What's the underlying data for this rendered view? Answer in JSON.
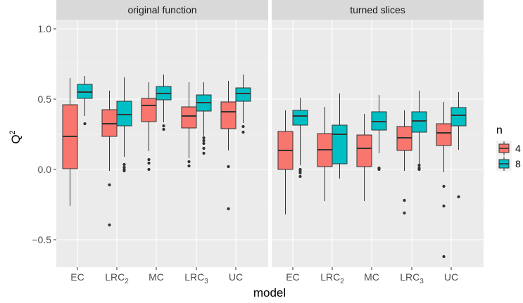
{
  "chart_data": {
    "type": "boxplot",
    "facets": [
      "original function",
      "turned slices"
    ],
    "categories": [
      "EC",
      "LRC2",
      "MC",
      "LRC3",
      "UC"
    ],
    "category_labels": [
      {
        "base": "EC",
        "sub": ""
      },
      {
        "base": "LRC",
        "sub": "2"
      },
      {
        "base": "MC",
        "sub": ""
      },
      {
        "base": "LRC",
        "sub": "3"
      },
      {
        "base": "UC",
        "sub": ""
      }
    ],
    "xlabel": "model",
    "ylabel": {
      "base": "Q",
      "sup": "2"
    },
    "ylim": [
      -0.7,
      1.1
    ],
    "yticks": [
      -0.5,
      0.0,
      0.5,
      1.0
    ],
    "ytick_labels": [
      "−0.5",
      "0.0",
      "0.5",
      "1.0"
    ],
    "grid": true,
    "legend": {
      "title": "n",
      "position": "right",
      "entries": [
        "4",
        "8"
      ]
    },
    "series": [
      {
        "name": "4",
        "color": "#F8766D",
        "boxes": [
          [
            {
              "low": -0.26,
              "q1": 0.005,
              "median": 0.235,
              "q3": 0.46,
              "high": 0.65,
              "outliers": []
            },
            {
              "low": -0.01,
              "q1": 0.235,
              "median": 0.325,
              "q3": 0.425,
              "high": 0.56,
              "outliers": [
                -0.11,
                -0.395
              ]
            },
            {
              "low": 0.13,
              "q1": 0.34,
              "median": 0.455,
              "q3": 0.505,
              "high": 0.62,
              "outliers": [
                0.07,
                0.045,
                0.0
              ]
            },
            {
              "low": 0.08,
              "q1": 0.295,
              "median": 0.38,
              "q3": 0.445,
              "high": 0.62,
              "outliers": [
                0.055,
                0.025
              ]
            },
            {
              "low": 0.135,
              "q1": 0.29,
              "median": 0.41,
              "q3": 0.48,
              "high": 0.63,
              "outliers": [
                0.02,
                -0.28
              ]
            }
          ],
          [
            {
              "low": -0.32,
              "q1": 0.0,
              "median": 0.135,
              "q3": 0.27,
              "high": 0.42,
              "outliers": []
            },
            {
              "low": -0.225,
              "q1": 0.02,
              "median": 0.14,
              "q3": 0.255,
              "high": 0.445,
              "outliers": []
            },
            {
              "low": -0.225,
              "q1": 0.02,
              "median": 0.15,
              "q3": 0.245,
              "high": 0.395,
              "outliers": []
            },
            {
              "low": -0.01,
              "q1": 0.135,
              "median": 0.225,
              "q3": 0.305,
              "high": 0.42,
              "outliers": [
                -0.22,
                -0.31
              ]
            },
            {
              "low": -0.02,
              "q1": 0.17,
              "median": 0.26,
              "q3": 0.325,
              "high": 0.48,
              "outliers": [
                -0.12,
                -0.26,
                -0.62
              ]
            }
          ]
        ]
      },
      {
        "name": "8",
        "color": "#00BFC4",
        "boxes": [
          [
            {
              "low": 0.38,
              "q1": 0.505,
              "median": 0.55,
              "q3": 0.605,
              "high": 0.665,
              "outliers": [
                0.325
              ]
            },
            {
              "low": 0.09,
              "q1": 0.31,
              "median": 0.39,
              "q3": 0.485,
              "high": 0.655,
              "outliers": [
                0.035,
                0.015,
                0.0,
                -0.01
              ]
            },
            {
              "low": 0.335,
              "q1": 0.495,
              "median": 0.54,
              "q3": 0.59,
              "high": 0.675,
              "outliers": [
                0.31,
                0.285
              ]
            },
            {
              "low": 0.24,
              "q1": 0.415,
              "median": 0.475,
              "q3": 0.53,
              "high": 0.62,
              "outliers": [
                0.225,
                0.205,
                0.185,
                0.15,
                0.115
              ]
            },
            {
              "low": 0.33,
              "q1": 0.485,
              "median": 0.54,
              "q3": 0.58,
              "high": 0.675,
              "outliers": [
                0.305,
                0.265
              ]
            }
          ],
          [
            {
              "low": 0.03,
              "q1": 0.315,
              "median": 0.38,
              "q3": 0.42,
              "high": 0.51,
              "outliers": [
                0.0,
                -0.01,
                -0.025,
                -0.05
              ]
            },
            {
              "low": -0.065,
              "q1": 0.04,
              "median": 0.25,
              "q3": 0.315,
              "high": 0.54,
              "outliers": []
            },
            {
              "low": 0.115,
              "q1": 0.28,
              "median": 0.34,
              "q3": 0.41,
              "high": 0.53,
              "outliers": [
                0.01,
                0.005,
                0.0
              ]
            },
            {
              "low": 0.04,
              "q1": 0.265,
              "median": 0.345,
              "q3": 0.41,
              "high": 0.56,
              "outliers": [
                0.03,
                0.01,
                0.0
              ]
            },
            {
              "low": 0.14,
              "q1": 0.31,
              "median": 0.385,
              "q3": 0.44,
              "high": 0.55,
              "outliers": [
                -0.195
              ]
            }
          ]
        ]
      }
    ]
  }
}
